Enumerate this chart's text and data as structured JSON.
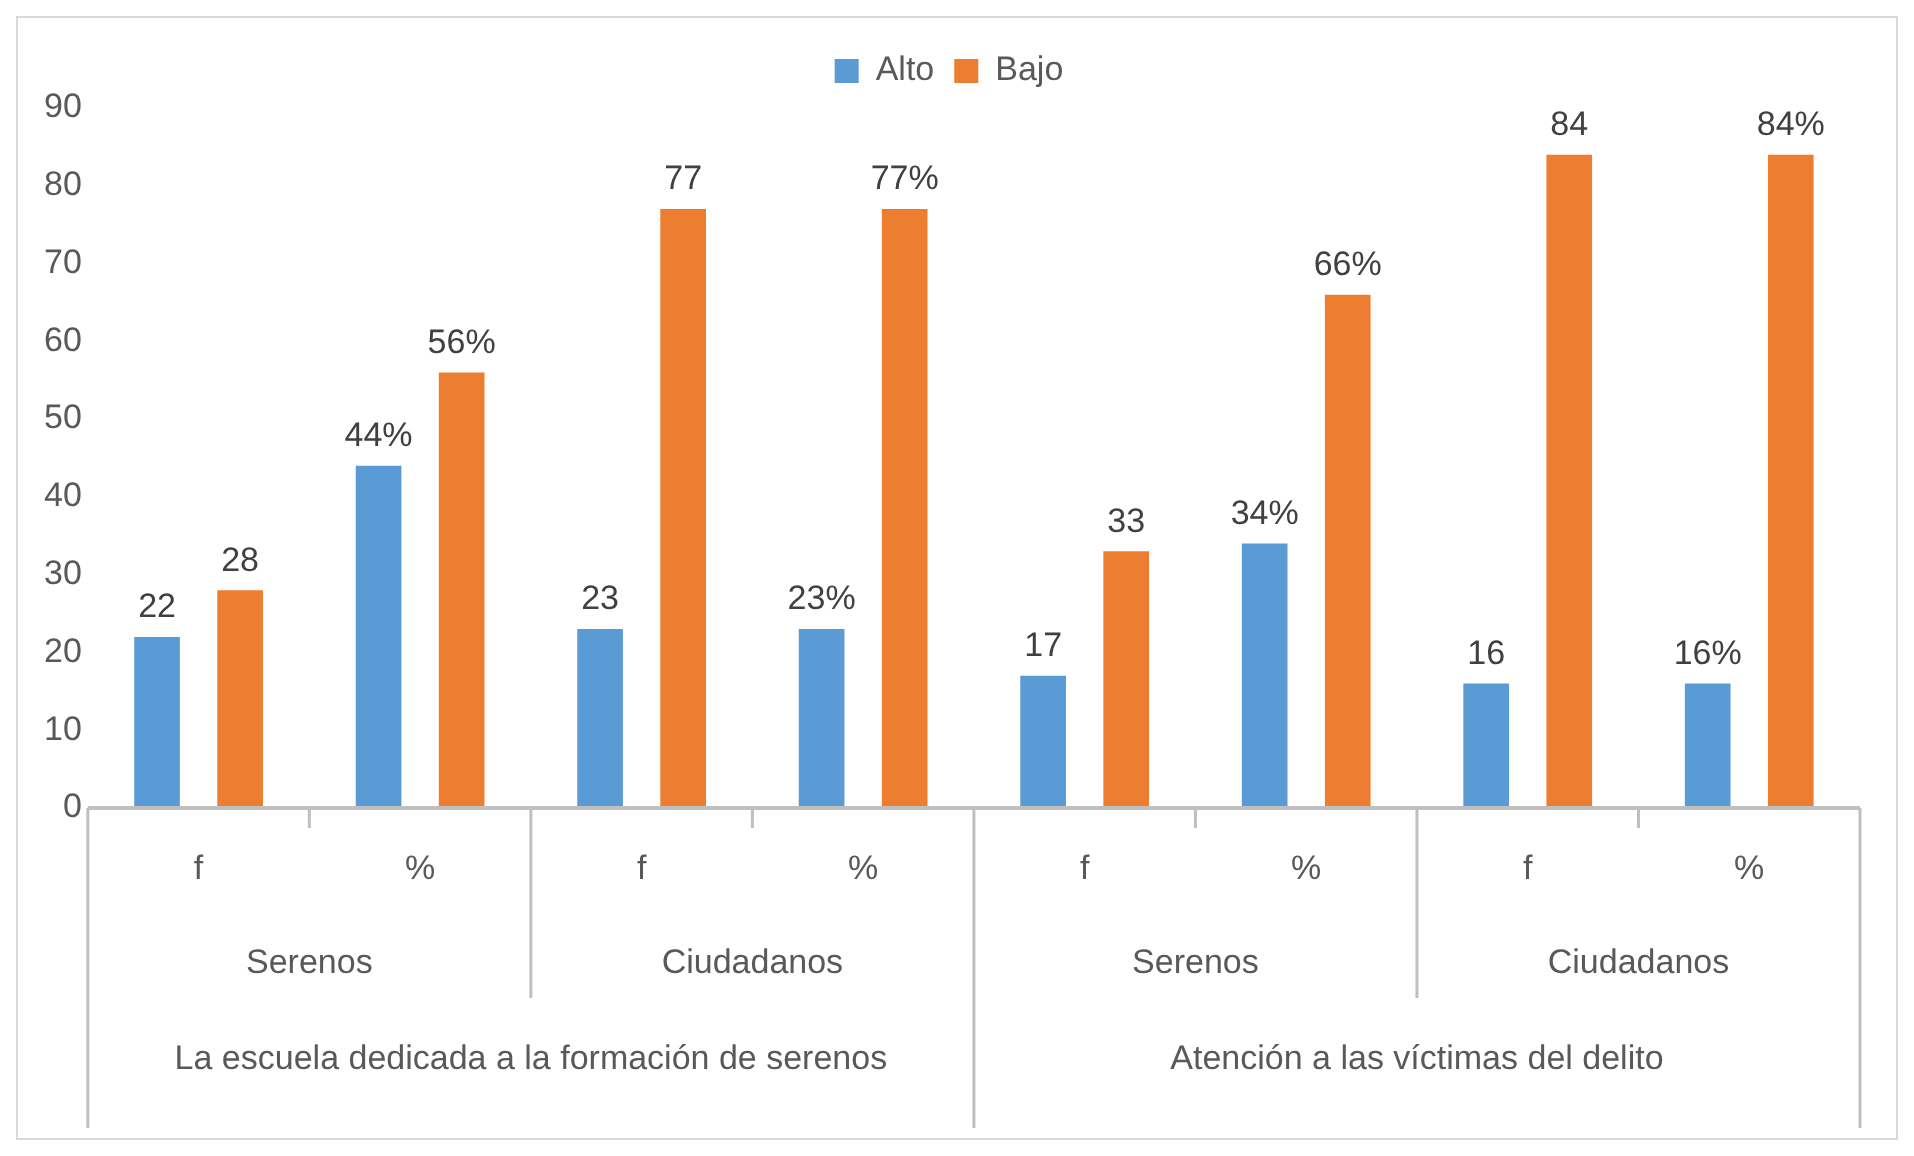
{
  "chart_data": {
    "type": "bar",
    "categories": [
      "f",
      "%",
      "f",
      "%",
      "f",
      "%",
      "f",
      "%"
    ],
    "series": [
      {
        "name": "Alto",
        "color": "#5b9bd5",
        "values": [
          22,
          44,
          23,
          23,
          17,
          34,
          16,
          16
        ],
        "value_labels": [
          "22",
          "44%",
          "23",
          "23%",
          "17",
          "34%",
          "16",
          "16%"
        ]
      },
      {
        "name": "Bajo",
        "color": "#ed7d31",
        "values": [
          28,
          56,
          77,
          77,
          33,
          66,
          84,
          84
        ],
        "value_labels": [
          "28",
          "56%",
          "77",
          "77%",
          "33",
          "66%",
          "84",
          "84%"
        ]
      }
    ],
    "ylim": [
      0,
      90
    ],
    "yticks": [
      0,
      10,
      20,
      30,
      40,
      50,
      60,
      70,
      80,
      90
    ],
    "grid": false,
    "legend": "top",
    "annotations": [
      "Serenos",
      "Ciudadanos",
      "Serenos",
      "Ciudadanos",
      "La escuela dedicada a la formación de serenos",
      "Atención a las víctimas del delito"
    ]
  }
}
